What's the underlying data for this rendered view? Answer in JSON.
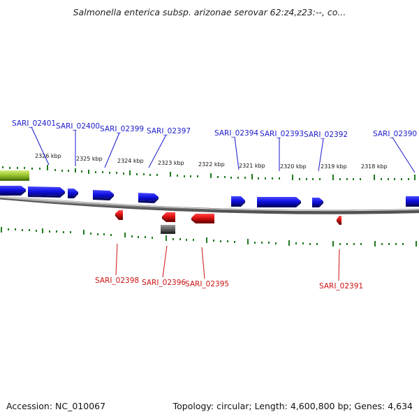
{
  "header": {
    "title": "Salmonella enterica subsp. arizonae serovar 62:z4,z23:--, co..."
  },
  "footer": {
    "accession": "Accession: NC_010067",
    "summary": "Topology: circular; Length: 4,600,800 bp; Genes: 4,634"
  },
  "colors": {
    "forward_label": "#1a1acc",
    "reverse_label": "#cc1111",
    "forward_gene": "#1010e0",
    "reverse_gene": "#e01010",
    "tick": "#1f7a1f",
    "backbone": "#808080"
  },
  "scale": {
    "ticks": [
      "2326 kbp",
      "2325 kbp",
      "2324 kbp",
      "2323 kbp",
      "2322 kbp",
      "2321 kbp",
      "2320 kbp",
      "2319 kbp",
      "2318 kbp"
    ]
  },
  "gene_labels": {
    "forward": [
      "SARI_02401",
      "SARI_02400",
      "SARI_02399",
      "SARI_02397",
      "SARI_02394",
      "SARI_02393",
      "SARI_02392",
      "SARI_02390"
    ],
    "reverse": [
      "SARI_02398",
      "SARI_02396",
      "SARI_02395",
      "SARI_02391"
    ]
  }
}
